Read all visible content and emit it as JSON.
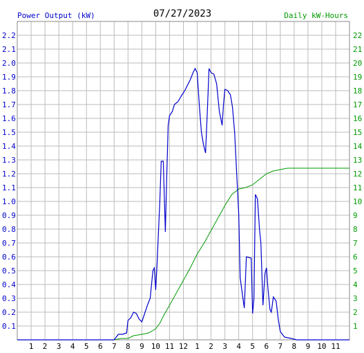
{
  "chart_data": {
    "type": "line",
    "title": "07/27/2023",
    "left_axis_label": "Power Output (kW)",
    "right_axis_label": "Daily kW-Hours",
    "x_tick_labels": [
      "1",
      "2",
      "3",
      "4",
      "5",
      "6",
      "7",
      "8",
      "9",
      "10",
      "11",
      "12",
      "1",
      "2",
      "3",
      "4",
      "5",
      "6",
      "7",
      "8",
      "9",
      "10",
      "11"
    ],
    "xlim": [
      0,
      24
    ],
    "ylim_left": [
      0,
      2.3
    ],
    "ylim_right": [
      0,
      23
    ],
    "left_ticks": [
      "0.1",
      "0.2",
      "0.3",
      "0.4",
      "0.5",
      "0.6",
      "0.7",
      "0.8",
      "0.9",
      "1.0",
      "1.1",
      "1.2",
      "1.3",
      "1.4",
      "1.5",
      "1.6",
      "1.7",
      "1.8",
      "1.9",
      "2.0",
      "2.1",
      "2.2"
    ],
    "right_ticks": [
      "1",
      "2",
      "3",
      "4",
      "5",
      "6",
      "7",
      "8",
      "9",
      "10",
      "11",
      "12",
      "13",
      "14",
      "15",
      "16",
      "17",
      "18",
      "19",
      "20",
      "21",
      "22"
    ],
    "grid": true,
    "colors": {
      "power": "#0000cc",
      "energy": "#009900",
      "title": "#000000",
      "grid": "#bbbbbb"
    },
    "series": [
      {
        "name": "Power Output (kW)",
        "axis": "left",
        "points": [
          [
            0,
            0
          ],
          [
            7.0,
            0
          ],
          [
            7.3,
            0.04
          ],
          [
            7.6,
            0.04
          ],
          [
            7.9,
            0.05
          ],
          [
            8.0,
            0.14
          ],
          [
            8.2,
            0.16
          ],
          [
            8.4,
            0.2
          ],
          [
            8.6,
            0.19
          ],
          [
            8.8,
            0.15
          ],
          [
            9.0,
            0.13
          ],
          [
            9.2,
            0.19
          ],
          [
            9.4,
            0.25
          ],
          [
            9.6,
            0.3
          ],
          [
            9.8,
            0.5
          ],
          [
            9.9,
            0.52
          ],
          [
            10.0,
            0.36
          ],
          [
            10.1,
            0.55
          ],
          [
            10.3,
            1.0
          ],
          [
            10.4,
            1.29
          ],
          [
            10.55,
            1.29
          ],
          [
            10.7,
            0.78
          ],
          [
            10.8,
            1.2
          ],
          [
            10.9,
            1.55
          ],
          [
            11.0,
            1.62
          ],
          [
            11.2,
            1.65
          ],
          [
            11.35,
            1.7
          ],
          [
            11.6,
            1.72
          ],
          [
            11.9,
            1.77
          ],
          [
            12.1,
            1.8
          ],
          [
            12.3,
            1.84
          ],
          [
            12.5,
            1.88
          ],
          [
            12.7,
            1.93
          ],
          [
            12.85,
            1.96
          ],
          [
            13.0,
            1.93
          ],
          [
            13.15,
            1.7
          ],
          [
            13.3,
            1.5
          ],
          [
            13.45,
            1.41
          ],
          [
            13.6,
            1.35
          ],
          [
            13.75,
            1.7
          ],
          [
            13.85,
            1.96
          ],
          [
            14.0,
            1.93
          ],
          [
            14.2,
            1.92
          ],
          [
            14.4,
            1.85
          ],
          [
            14.6,
            1.65
          ],
          [
            14.8,
            1.55
          ],
          [
            14.9,
            1.7
          ],
          [
            15.0,
            1.81
          ],
          [
            15.2,
            1.8
          ],
          [
            15.4,
            1.77
          ],
          [
            15.55,
            1.68
          ],
          [
            15.7,
            1.5
          ],
          [
            15.85,
            1.2
          ],
          [
            16.0,
            0.9
          ],
          [
            16.1,
            0.45
          ],
          [
            16.3,
            0.3
          ],
          [
            16.4,
            0.23
          ],
          [
            16.55,
            0.6
          ],
          [
            16.9,
            0.59
          ],
          [
            17.0,
            0.19
          ],
          [
            17.1,
            0.3
          ],
          [
            17.2,
            1.05
          ],
          [
            17.35,
            1.02
          ],
          [
            17.5,
            0.8
          ],
          [
            17.6,
            0.7
          ],
          [
            17.75,
            0.25
          ],
          [
            17.9,
            0.48
          ],
          [
            18.0,
            0.52
          ],
          [
            18.1,
            0.38
          ],
          [
            18.25,
            0.22
          ],
          [
            18.35,
            0.2
          ],
          [
            18.5,
            0.31
          ],
          [
            18.7,
            0.28
          ],
          [
            18.85,
            0.15
          ],
          [
            19.0,
            0.06
          ],
          [
            19.3,
            0.02
          ],
          [
            19.8,
            0.01
          ],
          [
            20.2,
            0.0
          ],
          [
            24,
            0
          ]
        ]
      },
      {
        "name": "Daily kW-Hours",
        "axis": "right",
        "points": [
          [
            0,
            0
          ],
          [
            7.0,
            0
          ],
          [
            7.5,
            0.1
          ],
          [
            8.0,
            0.1
          ],
          [
            8.4,
            0.3
          ],
          [
            9.0,
            0.4
          ],
          [
            9.5,
            0.5
          ],
          [
            10.0,
            0.8
          ],
          [
            10.3,
            1.2
          ],
          [
            10.6,
            1.8
          ],
          [
            11.0,
            2.5
          ],
          [
            11.5,
            3.4
          ],
          [
            12.0,
            4.3
          ],
          [
            12.5,
            5.2
          ],
          [
            13.0,
            6.2
          ],
          [
            13.5,
            7.0
          ],
          [
            14.0,
            7.9
          ],
          [
            14.5,
            8.8
          ],
          [
            15.0,
            9.7
          ],
          [
            15.5,
            10.5
          ],
          [
            16.0,
            10.9
          ],
          [
            16.5,
            11.0
          ],
          [
            17.0,
            11.2
          ],
          [
            17.5,
            11.6
          ],
          [
            18.0,
            12.0
          ],
          [
            18.5,
            12.2
          ],
          [
            19.0,
            12.3
          ],
          [
            19.5,
            12.4
          ],
          [
            20.0,
            12.4
          ],
          [
            24,
            12.4
          ]
        ]
      }
    ]
  }
}
